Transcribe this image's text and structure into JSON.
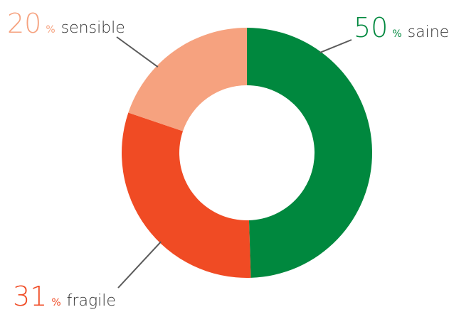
{
  "chart_data": {
    "type": "pie",
    "donut": true,
    "title": "",
    "slices": [
      {
        "label": "saine",
        "value": 50,
        "unit": "%",
        "color": "#00883e"
      },
      {
        "label": "fragile",
        "value": 31,
        "unit": "%",
        "color": "#f04b24"
      },
      {
        "label": "sensible",
        "value": 20,
        "unit": "%",
        "color": "#f6a27f"
      }
    ],
    "colors": {
      "leader_line": "#5a5a5a",
      "label_text": "#333333"
    }
  }
}
